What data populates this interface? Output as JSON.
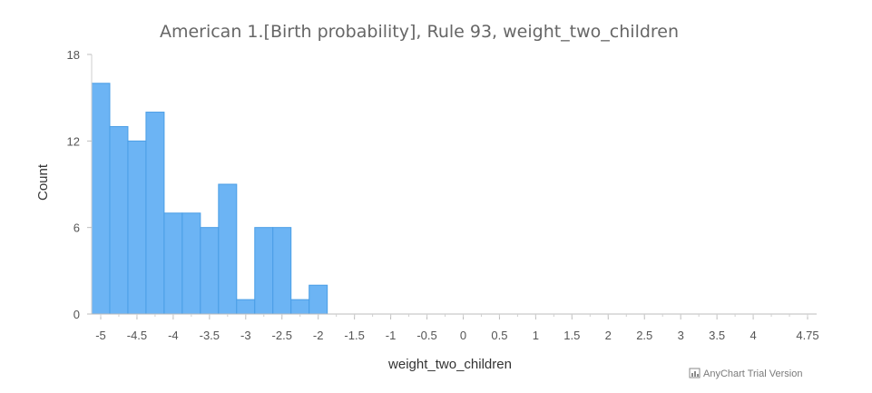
{
  "chart_data": {
    "type": "bar",
    "title": "American 1.[Birth probability], Rule 93, weight_two_children",
    "xlabel": "weight_two_children",
    "ylabel": "Count",
    "xlim": [
      -5.125,
      4.875
    ],
    "ylim": [
      0,
      18
    ],
    "bin_width": 0.25,
    "bins": [
      {
        "x": -5.0,
        "count": 16
      },
      {
        "x": -4.75,
        "count": 13
      },
      {
        "x": -4.5,
        "count": 12
      },
      {
        "x": -4.25,
        "count": 14
      },
      {
        "x": -4.0,
        "count": 7
      },
      {
        "x": -3.75,
        "count": 7
      },
      {
        "x": -3.5,
        "count": 6
      },
      {
        "x": -3.25,
        "count": 9
      },
      {
        "x": -3.0,
        "count": 1
      },
      {
        "x": -2.75,
        "count": 6
      },
      {
        "x": -2.5,
        "count": 6
      },
      {
        "x": -2.25,
        "count": 1
      },
      {
        "x": -2.0,
        "count": 2
      }
    ],
    "x_tick_labels": [
      "-5",
      "-4.5",
      "-4",
      "-3.5",
      "-3",
      "-2.5",
      "-2",
      "-1.5",
      "-1",
      "-0.5",
      "0",
      "0.5",
      "1",
      "1.5",
      "2",
      "2.5",
      "3",
      "3.5",
      "4",
      "4.75"
    ],
    "x_tick_values": [
      -5,
      -4.5,
      -4,
      -3.5,
      -3,
      -2.5,
      -2,
      -1.5,
      -1,
      -0.5,
      0,
      0.5,
      1,
      1.5,
      2,
      2.5,
      3,
      3.5,
      4,
      4.75
    ],
    "y_tick_labels": [
      "0",
      "6",
      "12",
      "18"
    ],
    "y_tick_values": [
      0,
      6,
      12,
      18
    ],
    "grid": false,
    "legend": "none",
    "bar_fill": "#6cb4f4",
    "bar_stroke": "#4a9ee6"
  },
  "credits": {
    "text": "AnyChart Trial Version",
    "icon": "chart-icon"
  }
}
